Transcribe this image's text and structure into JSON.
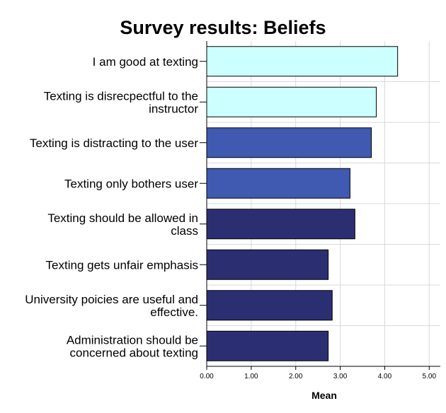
{
  "chart_data": {
    "type": "bar",
    "orientation": "horizontal",
    "title": "Survey results: Beliefs",
    "xlabel": "Mean",
    "ylabel": "",
    "xlim": [
      0,
      5.25
    ],
    "ticks": [
      "0.00",
      "1.00",
      "2.00",
      "3.00",
      "4.00",
      "5.00"
    ],
    "tick_values": [
      0,
      1,
      2,
      3,
      4,
      5
    ],
    "grid": true,
    "legend": "none",
    "categories": [
      {
        "lines": [
          "I am good at texting"
        ]
      },
      {
        "lines": [
          "Texting is disrecpectful to the",
          "instructor"
        ]
      },
      {
        "lines": [
          "Texting is distracting to the user"
        ]
      },
      {
        "lines": [
          "Texting only bothers user"
        ]
      },
      {
        "lines": [
          "Texting should be allowed in",
          "class"
        ]
      },
      {
        "lines": [
          "Texting gets unfair emphasis"
        ]
      },
      {
        "lines": [
          "University poicies are useful and",
          "effective."
        ]
      },
      {
        "lines": [
          "Administration should be",
          "concerned about texting"
        ]
      }
    ],
    "values": [
      4.29,
      3.81,
      3.7,
      3.22,
      3.33,
      2.73,
      2.82,
      2.73
    ],
    "colors": [
      "#ccffff",
      "#ccffff",
      "#3f5ab0",
      "#3f5ab0",
      "#2b2f72",
      "#2b2f72",
      "#2b2f72",
      "#2b2f72"
    ]
  }
}
